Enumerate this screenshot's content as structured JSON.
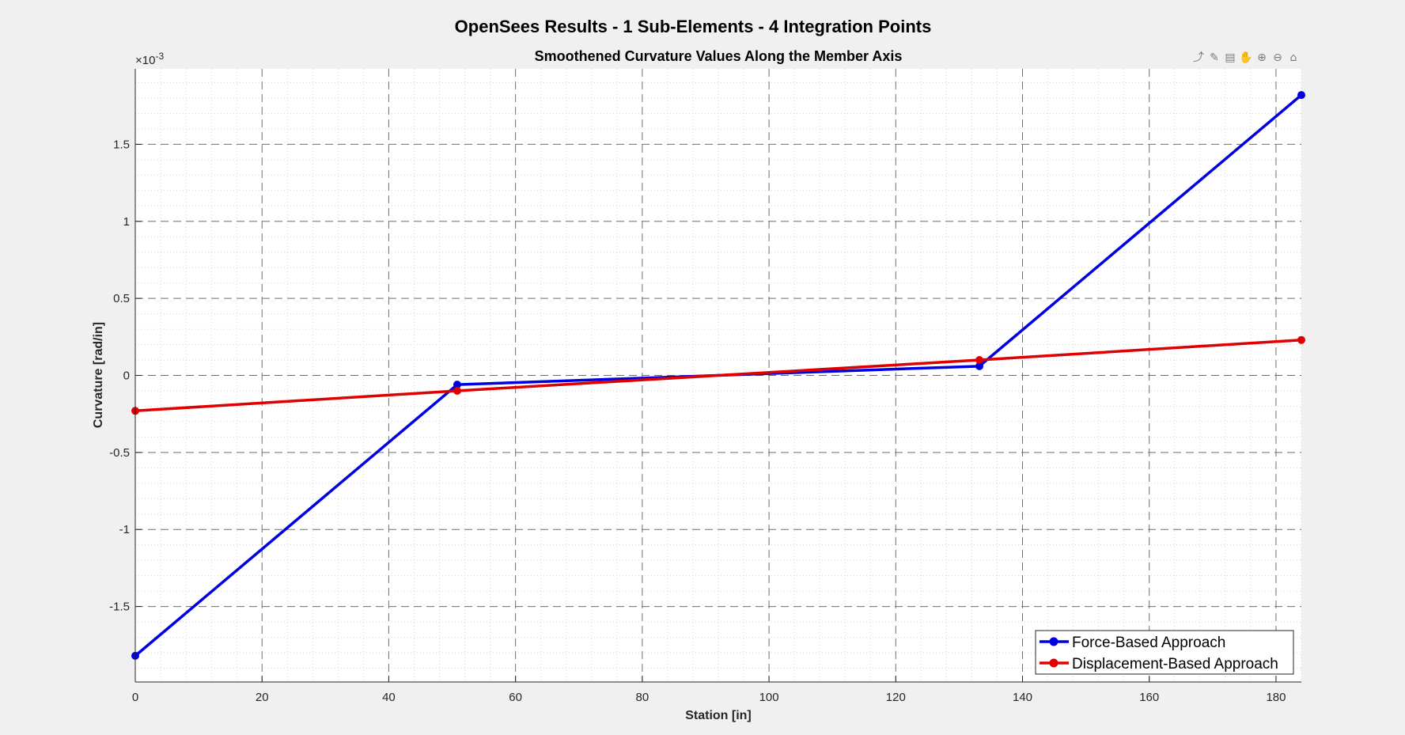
{
  "figure": {
    "suptitle": "OpenSees Results - 1 Sub-Elements - 4 Integration Points",
    "exponent_base": "×10",
    "exponent_power": "-3"
  },
  "toolbar": {
    "icons": [
      "export-icon",
      "brush-icon",
      "datatip-icon",
      "pan-icon",
      "zoom-in-icon",
      "zoom-out-icon",
      "home-icon"
    ]
  },
  "chart_data": {
    "type": "line",
    "title": "Smoothened Curvature Values Along the Member Axis",
    "xlabel": "Station [in]",
    "ylabel": "Curvature [rad/in]",
    "xlim": [
      0,
      184
    ],
    "ylim": [
      -1.99,
      1.99
    ],
    "xticks": [
      0,
      20,
      40,
      60,
      80,
      100,
      120,
      140,
      160,
      180
    ],
    "yticks": [
      -1.5,
      -1,
      -0.5,
      0,
      0.5,
      1,
      1.5
    ],
    "ytick_labels": [
      "-1.5",
      "-1",
      "-0.5",
      "0",
      "0.5",
      "1",
      "1.5"
    ],
    "y_scale_note": "×10^-3",
    "grid": true,
    "minor_grid": true,
    "legend_position": "bottom-right",
    "series": [
      {
        "name": "Force-Based Approach",
        "color": "#0000e0",
        "x": [
          0,
          50.8,
          133.2,
          184
        ],
        "y": [
          -1.82,
          -0.06,
          0.06,
          1.82
        ]
      },
      {
        "name": "Displacement-Based Approach",
        "color": "#e00000",
        "x": [
          0,
          50.8,
          133.2,
          184
        ],
        "y": [
          -0.23,
          -0.1,
          0.1,
          0.23
        ]
      }
    ]
  }
}
